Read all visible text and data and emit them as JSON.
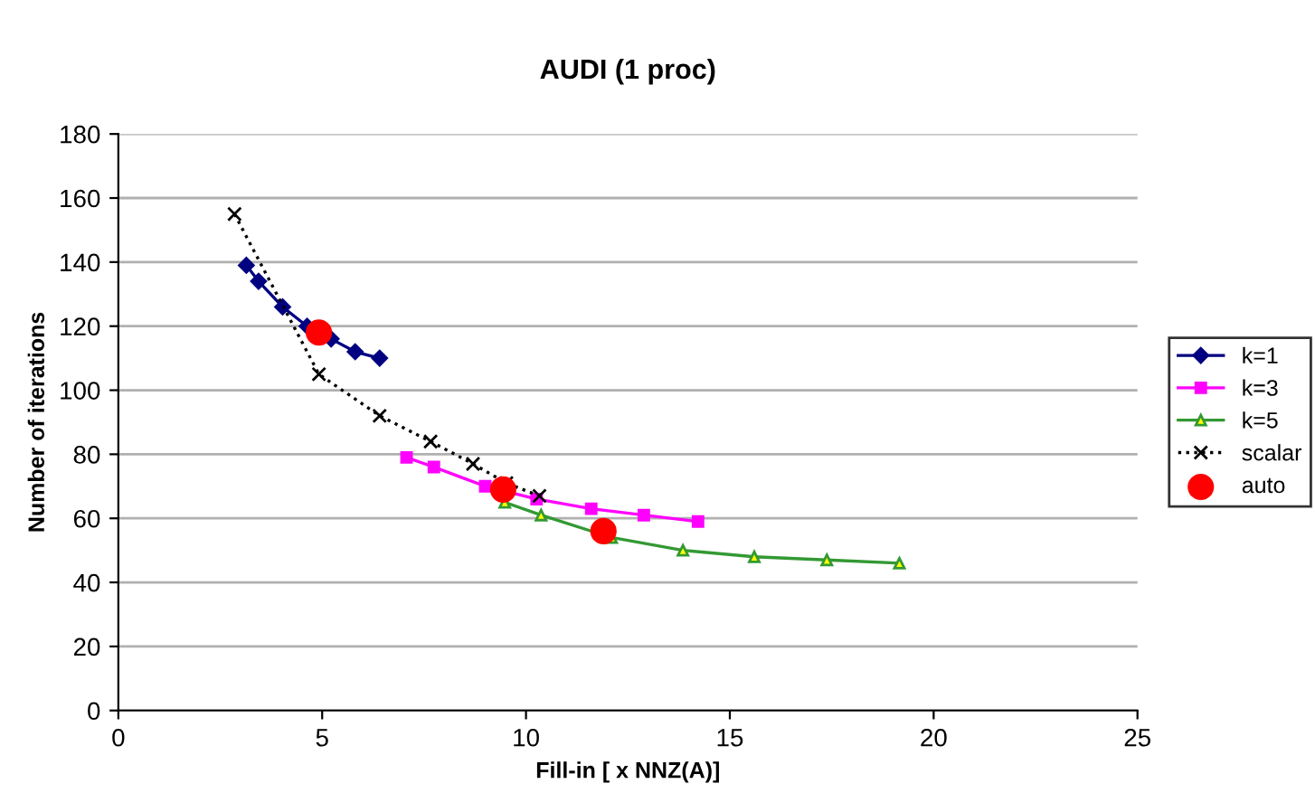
{
  "chart_data": {
    "type": "line",
    "title": "AUDI (1 proc)",
    "xlabel": "Fill-in [ x NNZ(A)]",
    "ylabel": "Number of iterations",
    "xlim": [
      0,
      25
    ],
    "xticks": [
      0,
      5,
      10,
      15,
      20,
      25
    ],
    "ylim": [
      0,
      180
    ],
    "yticks": [
      0,
      20,
      40,
      60,
      80,
      100,
      120,
      140,
      160,
      180
    ],
    "grid": "y",
    "legend": "right",
    "series": [
      {
        "name": "k=1",
        "color": "#000080",
        "marker": "diamond",
        "line_style": "solid",
        "x": [
          3.14,
          3.44,
          4.03,
          4.63,
          5.22,
          5.81,
          6.41
        ],
        "values": [
          139,
          134,
          126,
          120,
          116,
          112,
          110
        ]
      },
      {
        "name": "k=3",
        "color": "#ff00ff",
        "marker": "square",
        "line_style": "solid",
        "x": [
          7.07,
          7.74,
          9.0,
          10.26,
          11.6,
          12.89,
          14.22
        ],
        "values": [
          79,
          76,
          70,
          66,
          63,
          61,
          59
        ]
      },
      {
        "name": "k=5",
        "color": "#339933",
        "marker": "triangle",
        "line_style": "solid",
        "x": [
          9.48,
          10.37,
          12.1,
          13.85,
          15.6,
          17.38,
          19.16
        ],
        "values": [
          65,
          61,
          54,
          50,
          48,
          47,
          46
        ]
      },
      {
        "name": "scalar",
        "color": "#000000",
        "marker": "cross",
        "line_style": "dotted",
        "x": [
          2.85,
          4.92,
          6.41,
          7.66,
          8.7,
          9.52,
          10.33
        ],
        "values": [
          155,
          105,
          92,
          84,
          77,
          71,
          67
        ]
      },
      {
        "name": "auto",
        "type": "scatter",
        "color": "#ff0000",
        "marker": "circle",
        "x": [
          4.92,
          9.44,
          11.9
        ],
        "values": [
          118,
          69,
          56
        ]
      }
    ]
  }
}
